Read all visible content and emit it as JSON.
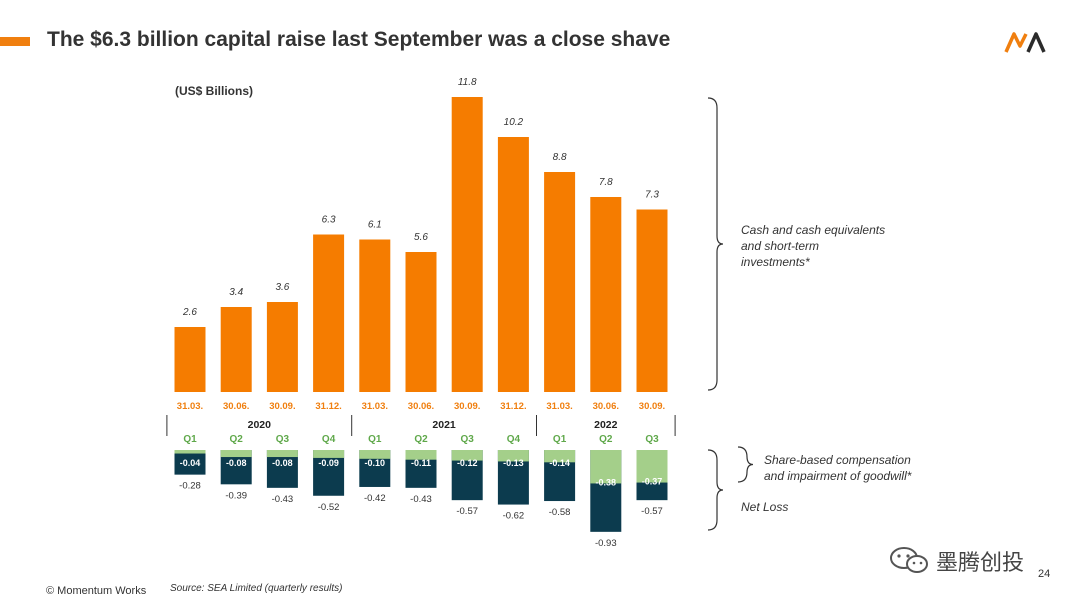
{
  "header": {
    "title": "The $6.3 billion capital raise last September was a close shave",
    "logo_text": "MA"
  },
  "chart_data": {
    "type": "bar",
    "title": "The $6.3 billion capital raise last September was a close shave",
    "units_label": "(US$ Billions)",
    "dates": [
      "31.03.",
      "30.06.",
      "30.09.",
      "31.12.",
      "31.03.",
      "30.06.",
      "30.09.",
      "31.12.",
      "31.03.",
      "30.06.",
      "30.09."
    ],
    "quarters": [
      "Q1",
      "Q2",
      "Q3",
      "Q4",
      "Q1",
      "Q2",
      "Q3",
      "Q4",
      "Q1",
      "Q2",
      "Q3"
    ],
    "years": [
      {
        "label": "2020",
        "start": 0,
        "end": 3
      },
      {
        "label": "2021",
        "start": 4,
        "end": 7
      },
      {
        "label": "2022",
        "start": 8,
        "end": 10
      }
    ],
    "cash": {
      "name": "Cash and cash equivalents and short-term investments*",
      "values": [
        2.6,
        3.4,
        3.6,
        6.3,
        6.1,
        5.6,
        11.8,
        10.2,
        8.8,
        7.8,
        7.3
      ],
      "labels": [
        "2.6",
        "3.4",
        "3.6",
        "6.3",
        "6.1",
        "5.6",
        "11.8",
        "10.2",
        "8.8",
        "7.8",
        "7.3"
      ],
      "color": "#f57c00"
    },
    "share_based": {
      "name": "Share-based compensation and impairment of goodwill*",
      "values": [
        -0.04,
        -0.08,
        -0.08,
        -0.09,
        -0.1,
        -0.11,
        -0.12,
        -0.13,
        -0.14,
        -0.38,
        -0.37
      ],
      "labels": [
        "-0.04",
        "-0.08",
        "-0.08",
        "-0.09",
        "-0.10",
        "-0.11",
        "-0.12",
        "-0.13",
        "-0.14",
        "-0.38",
        "-0.37"
      ],
      "color": "#a4cf8a"
    },
    "net_loss": {
      "name": "Net Loss",
      "values": [
        -0.28,
        -0.39,
        -0.43,
        -0.52,
        -0.42,
        -0.43,
        -0.57,
        -0.62,
        -0.58,
        -0.93,
        -0.57
      ],
      "labels": [
        "-0.28",
        "-0.39",
        "-0.43",
        "-0.52",
        "-0.42",
        "-0.43",
        "-0.57",
        "-0.62",
        "-0.58",
        "-0.93",
        "-0.57"
      ],
      "color": "#0c3b4e"
    },
    "colors": {
      "date_label": "#f07f0f",
      "quarter_label": "#5fa84a",
      "axis": "#333333"
    }
  },
  "annotations": {
    "cash_label_line1": "Cash and cash equivalents",
    "cash_label_line2": "and short-term",
    "cash_label_line3": "investments*",
    "share_label_line1": "Share-based compensation",
    "share_label_line2": "and impairment of goodwill*",
    "net_loss_label": "Net Loss"
  },
  "footer": {
    "copyright": "© Momentum Works",
    "source": "Source: SEA Limited (quarterly results)",
    "page_number": "24",
    "watermark": "墨腾创投"
  }
}
